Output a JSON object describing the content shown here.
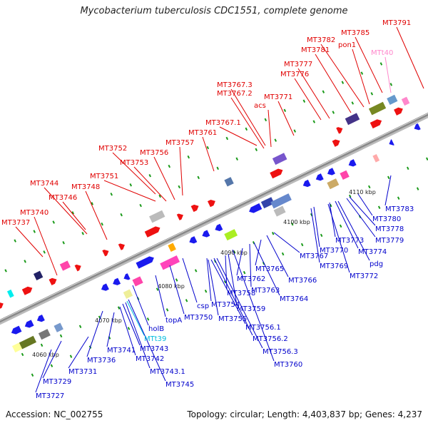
{
  "title": "Mycobacterium tuberculosis CDC1551, complete genome",
  "footer": {
    "accession": "Accession: NC_002755",
    "summary": "Topology: circular; Length: 4,403,837 bp; Genes: 4,237"
  },
  "colors": {
    "top_label": "#e00000",
    "bottom_label": "#0000cc",
    "trna_top": "#ff88cc",
    "trna_bottom": "#00bbdd",
    "backbone": "#888888"
  },
  "ticks": [
    "4060 kbp",
    "4070 kbp",
    "4080 kbp",
    "4090 kbp",
    "4100 kbp",
    "4110 kbp"
  ],
  "top_labels": [
    "MT3737",
    "MT3740",
    "MT3746",
    "MT3744",
    "MT3748",
    "MT3751",
    "MT3753",
    "MT3752",
    "MT3756",
    "MT3757",
    "MT3761",
    "MT3767.1",
    "MT3767.2",
    "MT3767.3",
    "acs",
    "MT3771",
    "MT3776",
    "MT3777",
    "MT3781",
    "MT3782",
    "pon1",
    "MT3785",
    "MTt40",
    "MT3791"
  ],
  "bottom_labels": [
    "MT3727",
    "MT3729",
    "MT3731",
    "MT3736",
    "MT3741",
    "MT3742",
    "MT3743",
    "MT3743.1",
    "MT3745",
    "MTt39",
    "holB",
    "topA",
    "MT3750",
    "csp",
    "MT3754",
    "MT3755",
    "MT3756.1",
    "MT3756.2",
    "MT3756.3",
    "MT3758",
    "MT3759",
    "MT3760",
    "MT3762",
    "MT3763",
    "MT3764",
    "MT3765",
    "MT3766",
    "MT3767",
    "MT3769",
    "MT3770",
    "MT3772",
    "MT3773",
    "pdg",
    "MT3774",
    "MT3779",
    "MT3778",
    "MT3780",
    "MT3783"
  ]
}
